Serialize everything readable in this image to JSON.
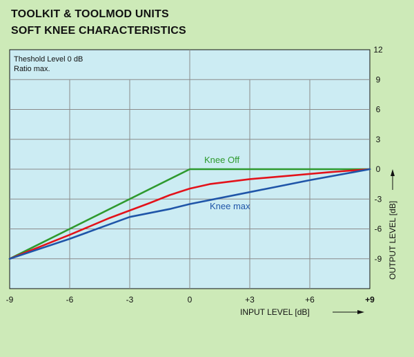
{
  "chart_data": {
    "type": "line",
    "title": [
      "TOOLKIT & TOOLMOD UNITS",
      "SOFT KNEE CHARACTERISTICS"
    ],
    "annotations": [
      "Theshold Level 0 dB",
      "Ratio max."
    ],
    "xlabel": "INPUT LEVEL  [dB]",
    "ylabel": "OUTPUT LEVEL  [dB]",
    "xlim": [
      -9,
      9
    ],
    "ylim": [
      -12,
      12
    ],
    "x_ticks": [
      -9,
      -6,
      -3,
      0,
      3,
      6,
      9
    ],
    "x_tick_labels": [
      "-9",
      "-6",
      "-3",
      "0",
      "+3",
      "+6",
      "+9"
    ],
    "y_ticks": [
      12,
      9,
      6,
      3,
      0,
      -3,
      -6,
      -9
    ],
    "y_tick_labels": [
      "12",
      "9",
      "6",
      "3",
      "0",
      "-3",
      "-6",
      "-9"
    ],
    "grid": true,
    "series": [
      {
        "name": "Knee Off",
        "color": "#2e9a2e",
        "x": [
          -9,
          0,
          9
        ],
        "y": [
          -9,
          0,
          0
        ]
      },
      {
        "name": "",
        "color": "#e3121a",
        "x": [
          -9,
          -6,
          -4,
          -2,
          -1,
          0,
          1,
          3,
          5,
          7,
          9
        ],
        "y": [
          -9,
          -6.6,
          -4.9,
          -3.4,
          -2.6,
          -1.95,
          -1.5,
          -1.0,
          -0.65,
          -0.3,
          0
        ]
      },
      {
        "name": "Knee max",
        "color": "#1f55a8",
        "x": [
          -9,
          -6,
          -3,
          -1,
          0,
          3,
          6,
          9
        ],
        "y": [
          -9,
          -7,
          -4.8,
          -4,
          -3.5,
          -2.3,
          -1.1,
          0
        ]
      }
    ]
  }
}
